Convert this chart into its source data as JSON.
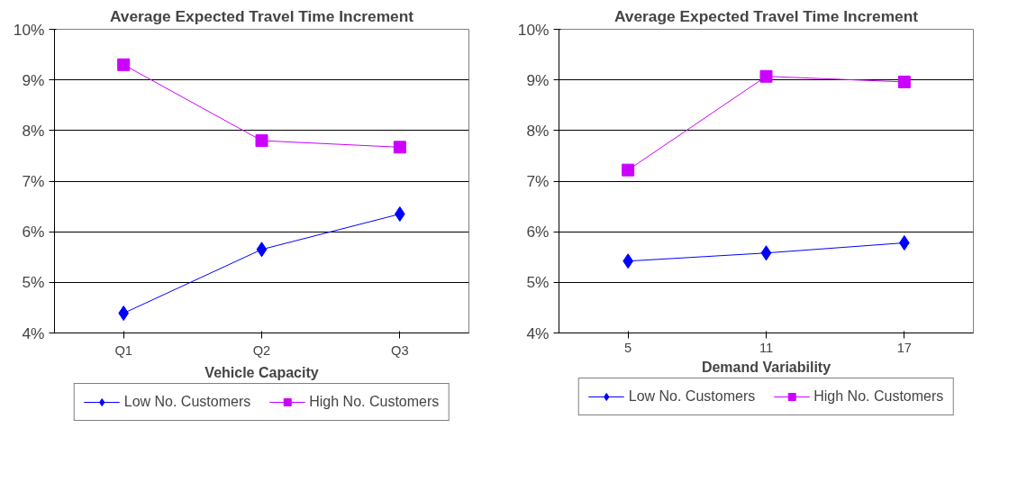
{
  "chart_data": [
    {
      "type": "line",
      "title": "Average Expected Travel Time Increment",
      "xlabel": "Vehicle Capacity",
      "categories": [
        "Q1",
        "Q2",
        "Q3"
      ],
      "ylim": [
        4,
        10
      ],
      "yticks": [
        {
          "value": 4,
          "label": "4%"
        },
        {
          "value": 5,
          "label": "5%"
        },
        {
          "value": 6,
          "label": "6%"
        },
        {
          "value": 7,
          "label": "7%"
        },
        {
          "value": 8,
          "label": "8%"
        },
        {
          "value": 9,
          "label": "9%"
        },
        {
          "value": 10,
          "label": "10%"
        }
      ],
      "grid": "y",
      "legend": "bottom",
      "series": [
        {
          "name": "Low No. Customers",
          "color": "#0000ff",
          "marker": "diamond",
          "values": [
            4.39,
            5.65,
            6.35
          ]
        },
        {
          "name": "High No. Customers",
          "color": "#cc00ff",
          "marker": "square",
          "values": [
            9.3,
            7.8,
            7.67
          ]
        }
      ]
    },
    {
      "type": "line",
      "title": "Average Expected Travel Time Increment",
      "xlabel": "Demand Variability",
      "categories": [
        "5",
        "11",
        "17"
      ],
      "ylim": [
        4,
        10
      ],
      "yticks": [
        {
          "value": 4,
          "label": "4%"
        },
        {
          "value": 5,
          "label": "5%"
        },
        {
          "value": 6,
          "label": "6%"
        },
        {
          "value": 7,
          "label": "7%"
        },
        {
          "value": 8,
          "label": "8%"
        },
        {
          "value": 9,
          "label": "9%"
        },
        {
          "value": 10,
          "label": "10%"
        }
      ],
      "grid": "y",
      "legend": "bottom",
      "series": [
        {
          "name": "Low No. Customers",
          "color": "#0000ff",
          "marker": "diamond",
          "values": [
            5.42,
            5.58,
            5.78
          ]
        },
        {
          "name": "High No. Customers",
          "color": "#cc00ff",
          "marker": "square",
          "values": [
            7.22,
            9.07,
            8.96
          ]
        }
      ]
    }
  ]
}
